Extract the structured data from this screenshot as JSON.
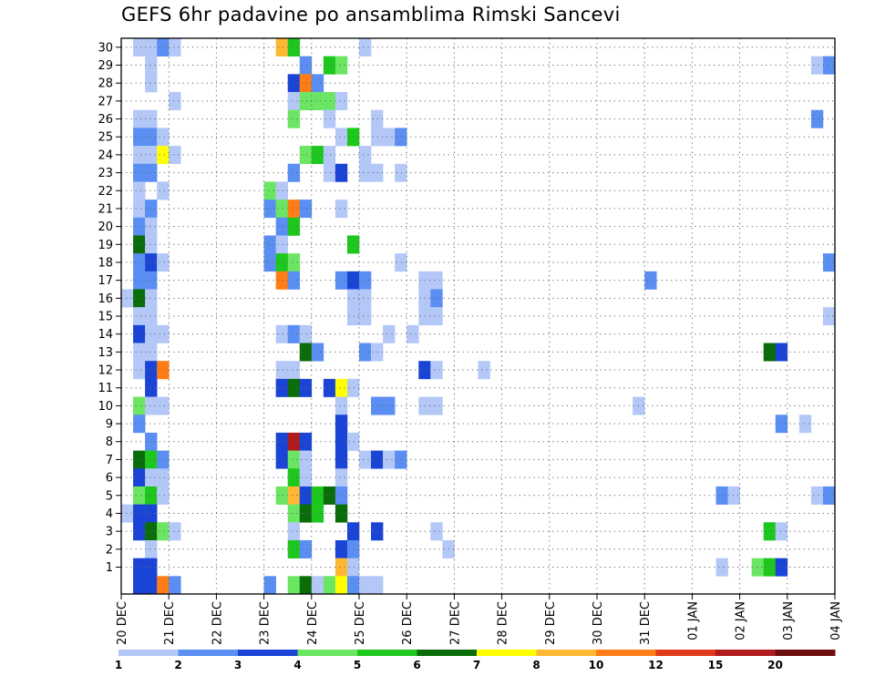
{
  "chart_data": {
    "type": "heatmap",
    "title": "GEFS 6hr padavine po ansamblima Rimski Sancevi",
    "x_tick_labels": [
      "20 DEC",
      "21 DEC",
      "22 DEC",
      "23 DEC",
      "24 DEC",
      "25 DEC",
      "26 DEC",
      "27 DEC",
      "28 DEC",
      "29 DEC",
      "30 DEC",
      "31 DEC",
      "01 JAN",
      "02 JAN",
      "03 JAN",
      "04 JAN"
    ],
    "y_tick_labels": [
      "1",
      "2",
      "3",
      "4",
      "5",
      "6",
      "7",
      "8",
      "9",
      "10",
      "11",
      "12",
      "13",
      "14",
      "15",
      "16",
      "17",
      "18",
      "19",
      "20",
      "21",
      "22",
      "23",
      "24",
      "25",
      "26",
      "27",
      "28",
      "29",
      "30"
    ],
    "xlim_days": [
      0,
      15
    ],
    "ylim": [
      0,
      30
    ],
    "time_step_hours": 6,
    "grid": "dotted",
    "legend": {
      "position": "bottom",
      "labels": [
        "1",
        "2",
        "3",
        "4",
        "5",
        "6",
        "7",
        "8",
        "10",
        "12",
        "15",
        "20"
      ],
      "colors": [
        "#b4c8f8",
        "#5a8ef2",
        "#1a44d6",
        "#6be663",
        "#1ec71e",
        "#0a6d0a",
        "#ffff00",
        "#ffb833",
        "#ff7d16",
        "#e03a1a",
        "#b01c1c",
        "#6e0f0f"
      ]
    },
    "precip_cells": [
      {
        "member": 30,
        "steps": [
          {
            "step": 1,
            "value": 1
          },
          {
            "step": 2,
            "value": 1
          },
          {
            "step": 3,
            "value": 2
          },
          {
            "step": 4,
            "value": 1
          },
          {
            "step": 13,
            "value": 8
          },
          {
            "step": 14,
            "value": 5
          },
          {
            "step": 20,
            "value": 1
          }
        ]
      },
      {
        "member": 29,
        "steps": [
          {
            "step": 2,
            "value": 1
          },
          {
            "step": 15,
            "value": 2
          },
          {
            "step": 17,
            "value": 5
          },
          {
            "step": 18,
            "value": 4
          },
          {
            "step": 58,
            "value": 1
          },
          {
            "step": 59,
            "value": 2
          }
        ]
      },
      {
        "member": 28,
        "steps": [
          {
            "step": 2,
            "value": 1
          },
          {
            "step": 14,
            "value": 3
          },
          {
            "step": 15,
            "value": 10
          },
          {
            "step": 16,
            "value": 2
          }
        ]
      },
      {
        "member": 27,
        "steps": [
          {
            "step": 4,
            "value": 1
          },
          {
            "step": 14,
            "value": 1
          },
          {
            "step": 15,
            "value": 4
          },
          {
            "step": 16,
            "value": 4
          },
          {
            "step": 17,
            "value": 4
          },
          {
            "step": 18,
            "value": 1
          }
        ]
      },
      {
        "member": 26,
        "steps": [
          {
            "step": 1,
            "value": 1
          },
          {
            "step": 2,
            "value": 1
          },
          {
            "step": 14,
            "value": 4
          },
          {
            "step": 17,
            "value": 1
          },
          {
            "step": 21,
            "value": 1
          },
          {
            "step": 58,
            "value": 2
          }
        ]
      },
      {
        "member": 25,
        "steps": [
          {
            "step": 1,
            "value": 2
          },
          {
            "step": 2,
            "value": 2
          },
          {
            "step": 3,
            "value": 1
          },
          {
            "step": 18,
            "value": 1
          },
          {
            "step": 19,
            "value": 5
          },
          {
            "step": 21,
            "value": 1
          },
          {
            "step": 22,
            "value": 1
          },
          {
            "step": 23,
            "value": 2
          }
        ]
      },
      {
        "member": 24,
        "steps": [
          {
            "step": 1,
            "value": 1
          },
          {
            "step": 2,
            "value": 1
          },
          {
            "step": 3,
            "value": 7
          },
          {
            "step": 4,
            "value": 1
          },
          {
            "step": 15,
            "value": 4
          },
          {
            "step": 16,
            "value": 5
          },
          {
            "step": 17,
            "value": 1
          },
          {
            "step": 20,
            "value": 1
          }
        ]
      },
      {
        "member": 23,
        "steps": [
          {
            "step": 1,
            "value": 2
          },
          {
            "step": 2,
            "value": 2
          },
          {
            "step": 14,
            "value": 2
          },
          {
            "step": 17,
            "value": 1
          },
          {
            "step": 18,
            "value": 3
          },
          {
            "step": 20,
            "value": 1
          },
          {
            "step": 21,
            "value": 1
          },
          {
            "step": 23,
            "value": 1
          }
        ]
      },
      {
        "member": 22,
        "steps": [
          {
            "step": 1,
            "value": 1
          },
          {
            "step": 3,
            "value": 1
          },
          {
            "step": 12,
            "value": 4
          },
          {
            "step": 13,
            "value": 1
          }
        ]
      },
      {
        "member": 21,
        "steps": [
          {
            "step": 1,
            "value": 1
          },
          {
            "step": 2,
            "value": 2
          },
          {
            "step": 12,
            "value": 2
          },
          {
            "step": 13,
            "value": 4
          },
          {
            "step": 14,
            "value": 10
          },
          {
            "step": 15,
            "value": 2
          },
          {
            "step": 18,
            "value": 1
          }
        ]
      },
      {
        "member": 20,
        "steps": [
          {
            "step": 1,
            "value": 2
          },
          {
            "step": 2,
            "value": 1
          },
          {
            "step": 13,
            "value": 2
          },
          {
            "step": 14,
            "value": 5
          }
        ]
      },
      {
        "member": 19,
        "steps": [
          {
            "step": 1,
            "value": 6
          },
          {
            "step": 2,
            "value": 1
          },
          {
            "step": 12,
            "value": 2
          },
          {
            "step": 13,
            "value": 1
          },
          {
            "step": 19,
            "value": 5
          }
        ]
      },
      {
        "member": 18,
        "steps": [
          {
            "step": 1,
            "value": 2
          },
          {
            "step": 2,
            "value": 3
          },
          {
            "step": 3,
            "value": 1
          },
          {
            "step": 12,
            "value": 2
          },
          {
            "step": 13,
            "value": 5
          },
          {
            "step": 14,
            "value": 4
          },
          {
            "step": 23,
            "value": 1
          },
          {
            "step": 59,
            "value": 2
          }
        ]
      },
      {
        "member": 17,
        "steps": [
          {
            "step": 1,
            "value": 2
          },
          {
            "step": 2,
            "value": 2
          },
          {
            "step": 13,
            "value": 10
          },
          {
            "step": 14,
            "value": 2
          },
          {
            "step": 18,
            "value": 2
          },
          {
            "step": 19,
            "value": 3
          },
          {
            "step": 20,
            "value": 2
          },
          {
            "step": 25,
            "value": 1
          },
          {
            "step": 26,
            "value": 1
          },
          {
            "step": 44,
            "value": 2
          }
        ]
      },
      {
        "member": 16,
        "steps": [
          {
            "step": 0,
            "value": 1
          },
          {
            "step": 1,
            "value": 6
          },
          {
            "step": 2,
            "value": 1
          },
          {
            "step": 19,
            "value": 1
          },
          {
            "step": 20,
            "value": 1
          },
          {
            "step": 25,
            "value": 1
          },
          {
            "step": 26,
            "value": 2
          }
        ]
      },
      {
        "member": 15,
        "steps": [
          {
            "step": 1,
            "value": 1
          },
          {
            "step": 2,
            "value": 1
          },
          {
            "step": 19,
            "value": 1
          },
          {
            "step": 20,
            "value": 1
          },
          {
            "step": 25,
            "value": 1
          },
          {
            "step": 26,
            "value": 1
          },
          {
            "step": 59,
            "value": 1
          }
        ]
      },
      {
        "member": 14,
        "steps": [
          {
            "step": 1,
            "value": 3
          },
          {
            "step": 2,
            "value": 1
          },
          {
            "step": 3,
            "value": 1
          },
          {
            "step": 13,
            "value": 1
          },
          {
            "step": 14,
            "value": 2
          },
          {
            "step": 15,
            "value": 1
          },
          {
            "step": 22,
            "value": 1
          },
          {
            "step": 24,
            "value": 1
          }
        ]
      },
      {
        "member": 13,
        "steps": [
          {
            "step": 1,
            "value": 1
          },
          {
            "step": 2,
            "value": 1
          },
          {
            "step": 15,
            "value": 6
          },
          {
            "step": 16,
            "value": 2
          },
          {
            "step": 20,
            "value": 2
          },
          {
            "step": 21,
            "value": 1
          },
          {
            "step": 54,
            "value": 6
          },
          {
            "step": 55,
            "value": 3
          }
        ]
      },
      {
        "member": 12,
        "steps": [
          {
            "step": 1,
            "value": 1
          },
          {
            "step": 2,
            "value": 3
          },
          {
            "step": 3,
            "value": 10
          },
          {
            "step": 13,
            "value": 1
          },
          {
            "step": 14,
            "value": 1
          },
          {
            "step": 25,
            "value": 3
          },
          {
            "step": 26,
            "value": 1
          },
          {
            "step": 30,
            "value": 1
          }
        ]
      },
      {
        "member": 11,
        "steps": [
          {
            "step": 2,
            "value": 3
          },
          {
            "step": 13,
            "value": 3
          },
          {
            "step": 14,
            "value": 6
          },
          {
            "step": 15,
            "value": 3
          },
          {
            "step": 17,
            "value": 3
          },
          {
            "step": 18,
            "value": 7
          },
          {
            "step": 19,
            "value": 1
          }
        ]
      },
      {
        "member": 10,
        "steps": [
          {
            "step": 1,
            "value": 4
          },
          {
            "step": 2,
            "value": 1
          },
          {
            "step": 3,
            "value": 1
          },
          {
            "step": 18,
            "value": 1
          },
          {
            "step": 21,
            "value": 2
          },
          {
            "step": 22,
            "value": 2
          },
          {
            "step": 25,
            "value": 1
          },
          {
            "step": 26,
            "value": 1
          },
          {
            "step": 43,
            "value": 1
          }
        ]
      },
      {
        "member": 9,
        "steps": [
          {
            "step": 1,
            "value": 2
          },
          {
            "step": 18,
            "value": 3
          },
          {
            "step": 55,
            "value": 2
          },
          {
            "step": 57,
            "value": 1
          }
        ]
      },
      {
        "member": 8,
        "steps": [
          {
            "step": 2,
            "value": 2
          },
          {
            "step": 13,
            "value": 3
          },
          {
            "step": 14,
            "value": 15
          },
          {
            "step": 15,
            "value": 3
          },
          {
            "step": 18,
            "value": 3
          },
          {
            "step": 19,
            "value": 1
          }
        ]
      },
      {
        "member": 7,
        "steps": [
          {
            "step": 1,
            "value": 6
          },
          {
            "step": 2,
            "value": 5
          },
          {
            "step": 3,
            "value": 2
          },
          {
            "step": 13,
            "value": 3
          },
          {
            "step": 14,
            "value": 4
          },
          {
            "step": 15,
            "value": 1
          },
          {
            "step": 18,
            "value": 3
          },
          {
            "step": 20,
            "value": 1
          },
          {
            "step": 21,
            "value": 3
          },
          {
            "step": 22,
            "value": 1
          },
          {
            "step": 23,
            "value": 2
          }
        ]
      },
      {
        "member": 6,
        "steps": [
          {
            "step": 1,
            "value": 3
          },
          {
            "step": 2,
            "value": 1
          },
          {
            "step": 3,
            "value": 1
          },
          {
            "step": 14,
            "value": 5
          },
          {
            "step": 15,
            "value": 1
          },
          {
            "step": 18,
            "value": 1
          }
        ]
      },
      {
        "member": 5,
        "steps": [
          {
            "step": 1,
            "value": 4
          },
          {
            "step": 2,
            "value": 5
          },
          {
            "step": 3,
            "value": 1
          },
          {
            "step": 13,
            "value": 4
          },
          {
            "step": 14,
            "value": 8
          },
          {
            "step": 15,
            "value": 3
          },
          {
            "step": 16,
            "value": 5
          },
          {
            "step": 17,
            "value": 6
          },
          {
            "step": 18,
            "value": 2
          },
          {
            "step": 50,
            "value": 2
          },
          {
            "step": 51,
            "value": 1
          },
          {
            "step": 58,
            "value": 1
          },
          {
            "step": 59,
            "value": 2
          }
        ]
      },
      {
        "member": 4,
        "steps": [
          {
            "step": 0,
            "value": 1
          },
          {
            "step": 1,
            "value": 3
          },
          {
            "step": 2,
            "value": 3
          },
          {
            "step": 14,
            "value": 4
          },
          {
            "step": 15,
            "value": 6
          },
          {
            "step": 16,
            "value": 5
          },
          {
            "step": 18,
            "value": 6
          }
        ]
      },
      {
        "member": 3,
        "steps": [
          {
            "step": 1,
            "value": 3
          },
          {
            "step": 2,
            "value": 6
          },
          {
            "step": 3,
            "value": 4
          },
          {
            "step": 4,
            "value": 1
          },
          {
            "step": 14,
            "value": 1
          },
          {
            "step": 19,
            "value": 3
          },
          {
            "step": 21,
            "value": 3
          },
          {
            "step": 26,
            "value": 1
          },
          {
            "step": 54,
            "value": 5
          },
          {
            "step": 55,
            "value": 1
          }
        ]
      },
      {
        "member": 2,
        "steps": [
          {
            "step": 2,
            "value": 1
          },
          {
            "step": 14,
            "value": 5
          },
          {
            "step": 15,
            "value": 2
          },
          {
            "step": 18,
            "value": 3
          },
          {
            "step": 19,
            "value": 2
          },
          {
            "step": 27,
            "value": 1
          }
        ]
      },
      {
        "member": 1,
        "steps": [
          {
            "step": 1,
            "value": 3
          },
          {
            "step": 2,
            "value": 3
          },
          {
            "step": 18,
            "value": 8
          },
          {
            "step": 19,
            "value": 1
          },
          {
            "step": 50,
            "value": 1
          },
          {
            "step": 53,
            "value": 4
          },
          {
            "step": 54,
            "value": 5
          },
          {
            "step": 55,
            "value": 3
          }
        ]
      },
      {
        "member": 0,
        "steps": [
          {
            "step": 1,
            "value": 3
          },
          {
            "step": 2,
            "value": 3
          },
          {
            "step": 3,
            "value": 10
          },
          {
            "step": 4,
            "value": 2
          },
          {
            "step": 12,
            "value": 2
          },
          {
            "step": 14,
            "value": 4
          },
          {
            "step": 15,
            "value": 6
          },
          {
            "step": 16,
            "value": 1
          },
          {
            "step": 17,
            "value": 4
          },
          {
            "step": 18,
            "value": 7
          },
          {
            "step": 19,
            "value": 2
          },
          {
            "step": 20,
            "value": 1
          },
          {
            "step": 21,
            "value": 1
          }
        ]
      }
    ]
  }
}
